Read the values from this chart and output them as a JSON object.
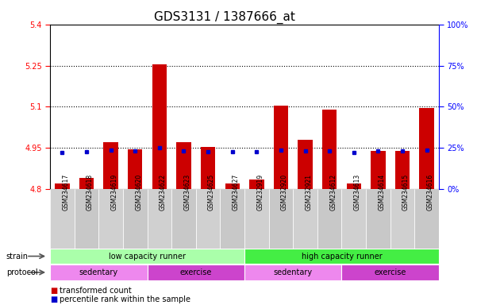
{
  "title": "GDS3131 / 1387666_at",
  "samples": [
    "GSM234617",
    "GSM234618",
    "GSM234619",
    "GSM234620",
    "GSM234622",
    "GSM234623",
    "GSM234625",
    "GSM234627",
    "GSM232919",
    "GSM232920",
    "GSM232921",
    "GSM234612",
    "GSM234613",
    "GSM234614",
    "GSM234615",
    "GSM234616"
  ],
  "red_values": [
    4.82,
    4.84,
    4.97,
    4.945,
    5.255,
    4.97,
    4.955,
    4.82,
    4.835,
    5.105,
    4.98,
    5.09,
    4.82,
    4.94,
    4.94,
    5.095
  ],
  "blue_values": [
    4.933,
    4.935,
    4.942,
    4.94,
    4.952,
    4.94,
    4.937,
    4.936,
    4.936,
    4.943,
    4.94,
    4.94,
    4.933,
    4.94,
    4.938,
    4.942
  ],
  "ymin": 4.8,
  "ymax": 5.4,
  "yticks_left": [
    4.8,
    4.95,
    5.1,
    5.25,
    5.4
  ],
  "yticks_right_vals": [
    0,
    25,
    50,
    75,
    100
  ],
  "bar_color": "#cc0000",
  "dot_color": "#0000cc",
  "strain_groups": [
    {
      "label": "low capacity runner",
      "start": 0,
      "end": 8,
      "color": "#aaffaa"
    },
    {
      "label": "high capacity runner",
      "start": 8,
      "end": 16,
      "color": "#44ee44"
    }
  ],
  "protocol_groups": [
    {
      "label": "sedentary",
      "start": 0,
      "end": 4,
      "color": "#ee88ee"
    },
    {
      "label": "exercise",
      "start": 4,
      "end": 8,
      "color": "#cc44cc"
    },
    {
      "label": "sedentary",
      "start": 8,
      "end": 12,
      "color": "#ee88ee"
    },
    {
      "label": "exercise",
      "start": 12,
      "end": 16,
      "color": "#cc44cc"
    }
  ],
  "legend_red": "transformed count",
  "legend_blue": "percentile rank within the sample",
  "strain_label": "strain",
  "protocol_label": "protocol",
  "dotted_lines": [
    4.95,
    5.1,
    5.25
  ],
  "bar_width": 0.6,
  "tick_fontsize": 7,
  "label_fontsize": 7,
  "xticklabel_fontsize": 5.5,
  "title_fontsize": 11
}
